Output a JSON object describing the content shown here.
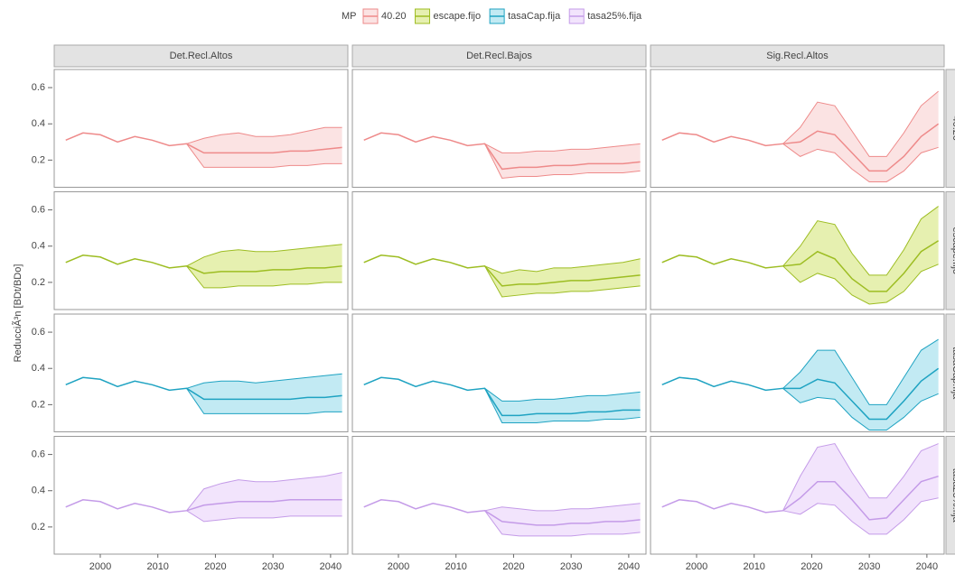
{
  "chart_data": {
    "type": "line",
    "legend_title": "MP",
    "y_label": "ReducciÃ³n [BDt/BDo]",
    "grid": false,
    "columns": [
      "Det.Recl.Altos",
      "Det.Recl.Bajos",
      "Sig.Recl.Altos"
    ],
    "x": [
      1994,
      1997,
      2000,
      2003,
      2006,
      2009,
      2012,
      2015,
      2018,
      2021,
      2024,
      2027,
      2030,
      2033,
      2036,
      2039,
      2042
    ],
    "xlim": [
      1992,
      2043
    ],
    "xticks": [
      2000,
      2010,
      2020,
      2030,
      2040
    ],
    "ylim": [
      0.05,
      0.7
    ],
    "yticks": [
      0.2,
      0.4,
      0.6
    ],
    "rows": [
      {
        "name": "40.20",
        "color": "#ee8a8a",
        "fill": "#fbe3e3",
        "panels": [
          {
            "median": [
              0.31,
              0.35,
              0.34,
              0.3,
              0.33,
              0.31,
              0.28,
              0.29,
              0.24,
              0.24,
              0.24,
              0.24,
              0.24,
              0.25,
              0.25,
              0.26,
              0.27
            ],
            "lower": [
              null,
              null,
              null,
              null,
              null,
              null,
              null,
              0.29,
              0.16,
              0.16,
              0.16,
              0.16,
              0.16,
              0.17,
              0.17,
              0.18,
              0.18
            ],
            "upper": [
              null,
              null,
              null,
              null,
              null,
              null,
              null,
              0.29,
              0.32,
              0.34,
              0.35,
              0.33,
              0.33,
              0.34,
              0.36,
              0.38,
              0.38
            ]
          },
          {
            "median": [
              0.31,
              0.35,
              0.34,
              0.3,
              0.33,
              0.31,
              0.28,
              0.29,
              0.15,
              0.16,
              0.16,
              0.17,
              0.17,
              0.18,
              0.18,
              0.18,
              0.19
            ],
            "lower": [
              null,
              null,
              null,
              null,
              null,
              null,
              null,
              0.29,
              0.1,
              0.11,
              0.11,
              0.12,
              0.12,
              0.13,
              0.13,
              0.13,
              0.14
            ],
            "upper": [
              null,
              null,
              null,
              null,
              null,
              null,
              null,
              0.29,
              0.24,
              0.24,
              0.25,
              0.25,
              0.26,
              0.26,
              0.27,
              0.28,
              0.29
            ]
          },
          {
            "median": [
              0.31,
              0.35,
              0.34,
              0.3,
              0.33,
              0.31,
              0.28,
              0.29,
              0.3,
              0.36,
              0.34,
              0.24,
              0.14,
              0.14,
              0.22,
              0.33,
              0.4
            ],
            "lower": [
              null,
              null,
              null,
              null,
              null,
              null,
              null,
              0.29,
              0.22,
              0.26,
              0.24,
              0.15,
              0.08,
              0.08,
              0.14,
              0.24,
              0.27
            ],
            "upper": [
              null,
              null,
              null,
              null,
              null,
              null,
              null,
              0.29,
              0.38,
              0.52,
              0.5,
              0.36,
              0.22,
              0.22,
              0.35,
              0.5,
              0.58
            ]
          }
        ]
      },
      {
        "name": "escape.fijo",
        "color": "#9dbd22",
        "fill": "#e6f0b0",
        "panels": [
          {
            "median": [
              0.31,
              0.35,
              0.34,
              0.3,
              0.33,
              0.31,
              0.28,
              0.29,
              0.25,
              0.26,
              0.26,
              0.26,
              0.27,
              0.27,
              0.28,
              0.28,
              0.29
            ],
            "lower": [
              null,
              null,
              null,
              null,
              null,
              null,
              null,
              0.29,
              0.17,
              0.17,
              0.18,
              0.18,
              0.18,
              0.19,
              0.19,
              0.2,
              0.2
            ],
            "upper": [
              null,
              null,
              null,
              null,
              null,
              null,
              null,
              0.29,
              0.34,
              0.37,
              0.38,
              0.37,
              0.37,
              0.38,
              0.39,
              0.4,
              0.41
            ]
          },
          {
            "median": [
              0.31,
              0.35,
              0.34,
              0.3,
              0.33,
              0.31,
              0.28,
              0.29,
              0.18,
              0.19,
              0.19,
              0.2,
              0.21,
              0.21,
              0.22,
              0.23,
              0.24
            ],
            "lower": [
              null,
              null,
              null,
              null,
              null,
              null,
              null,
              0.29,
              0.12,
              0.13,
              0.14,
              0.14,
              0.15,
              0.15,
              0.16,
              0.17,
              0.18
            ],
            "upper": [
              null,
              null,
              null,
              null,
              null,
              null,
              null,
              0.29,
              0.25,
              0.27,
              0.26,
              0.28,
              0.28,
              0.29,
              0.3,
              0.31,
              0.33
            ]
          },
          {
            "median": [
              0.31,
              0.35,
              0.34,
              0.3,
              0.33,
              0.31,
              0.28,
              0.29,
              0.3,
              0.37,
              0.33,
              0.22,
              0.15,
              0.15,
              0.25,
              0.37,
              0.43
            ],
            "lower": [
              null,
              null,
              null,
              null,
              null,
              null,
              null,
              0.29,
              0.2,
              0.25,
              0.22,
              0.13,
              0.08,
              0.09,
              0.15,
              0.26,
              0.3
            ],
            "upper": [
              null,
              null,
              null,
              null,
              null,
              null,
              null,
              0.29,
              0.4,
              0.54,
              0.52,
              0.36,
              0.24,
              0.24,
              0.38,
              0.55,
              0.62
            ]
          }
        ]
      },
      {
        "name": "tasaCap.fija",
        "color": "#1fa3c2",
        "fill": "#c2eaf3",
        "panels": [
          {
            "median": [
              0.31,
              0.35,
              0.34,
              0.3,
              0.33,
              0.31,
              0.28,
              0.29,
              0.23,
              0.23,
              0.23,
              0.23,
              0.23,
              0.23,
              0.24,
              0.24,
              0.25
            ],
            "lower": [
              null,
              null,
              null,
              null,
              null,
              null,
              null,
              0.29,
              0.15,
              0.15,
              0.15,
              0.15,
              0.15,
              0.15,
              0.15,
              0.16,
              0.16
            ],
            "upper": [
              null,
              null,
              null,
              null,
              null,
              null,
              null,
              0.29,
              0.32,
              0.33,
              0.33,
              0.32,
              0.33,
              0.34,
              0.35,
              0.36,
              0.37
            ]
          },
          {
            "median": [
              0.31,
              0.35,
              0.34,
              0.3,
              0.33,
              0.31,
              0.28,
              0.29,
              0.14,
              0.14,
              0.15,
              0.15,
              0.15,
              0.16,
              0.16,
              0.17,
              0.17
            ],
            "lower": [
              null,
              null,
              null,
              null,
              null,
              null,
              null,
              0.29,
              0.1,
              0.1,
              0.1,
              0.11,
              0.11,
              0.11,
              0.12,
              0.12,
              0.13
            ],
            "upper": [
              null,
              null,
              null,
              null,
              null,
              null,
              null,
              0.29,
              0.22,
              0.22,
              0.23,
              0.23,
              0.24,
              0.25,
              0.25,
              0.26,
              0.27
            ]
          },
          {
            "median": [
              0.31,
              0.35,
              0.34,
              0.3,
              0.33,
              0.31,
              0.28,
              0.29,
              0.29,
              0.34,
              0.32,
              0.22,
              0.12,
              0.12,
              0.22,
              0.33,
              0.4
            ],
            "lower": [
              null,
              null,
              null,
              null,
              null,
              null,
              null,
              0.29,
              0.21,
              0.24,
              0.23,
              0.13,
              0.06,
              0.06,
              0.13,
              0.22,
              0.26
            ],
            "upper": [
              null,
              null,
              null,
              null,
              null,
              null,
              null,
              0.29,
              0.38,
              0.5,
              0.5,
              0.35,
              0.2,
              0.2,
              0.35,
              0.5,
              0.56
            ]
          }
        ]
      },
      {
        "name": "tasa25%.fija",
        "color": "#c49be8",
        "fill": "#f2e4fc",
        "panels": [
          {
            "median": [
              0.31,
              0.35,
              0.34,
              0.3,
              0.33,
              0.31,
              0.28,
              0.29,
              0.32,
              0.33,
              0.34,
              0.34,
              0.34,
              0.35,
              0.35,
              0.35,
              0.35
            ],
            "lower": [
              null,
              null,
              null,
              null,
              null,
              null,
              null,
              0.29,
              0.23,
              0.24,
              0.25,
              0.25,
              0.25,
              0.26,
              0.26,
              0.26,
              0.26
            ],
            "upper": [
              null,
              null,
              null,
              null,
              null,
              null,
              null,
              0.29,
              0.41,
              0.44,
              0.46,
              0.45,
              0.45,
              0.46,
              0.47,
              0.48,
              0.5
            ]
          },
          {
            "median": [
              0.31,
              0.35,
              0.34,
              0.3,
              0.33,
              0.31,
              0.28,
              0.29,
              0.23,
              0.22,
              0.21,
              0.21,
              0.22,
              0.22,
              0.23,
              0.23,
              0.24
            ],
            "lower": [
              null,
              null,
              null,
              null,
              null,
              null,
              null,
              0.29,
              0.16,
              0.15,
              0.15,
              0.15,
              0.15,
              0.16,
              0.16,
              0.16,
              0.17
            ],
            "upper": [
              null,
              null,
              null,
              null,
              null,
              null,
              null,
              0.29,
              0.31,
              0.3,
              0.29,
              0.29,
              0.3,
              0.3,
              0.31,
              0.32,
              0.33
            ]
          },
          {
            "median": [
              0.31,
              0.35,
              0.34,
              0.3,
              0.33,
              0.31,
              0.28,
              0.29,
              0.36,
              0.45,
              0.45,
              0.35,
              0.24,
              0.25,
              0.35,
              0.45,
              0.48
            ],
            "lower": [
              null,
              null,
              null,
              null,
              null,
              null,
              null,
              0.29,
              0.27,
              0.33,
              0.32,
              0.23,
              0.16,
              0.16,
              0.24,
              0.34,
              0.36
            ],
            "upper": [
              null,
              null,
              null,
              null,
              null,
              null,
              null,
              0.29,
              0.48,
              0.64,
              0.66,
              0.5,
              0.36,
              0.36,
              0.48,
              0.62,
              0.66
            ]
          }
        ]
      }
    ]
  }
}
